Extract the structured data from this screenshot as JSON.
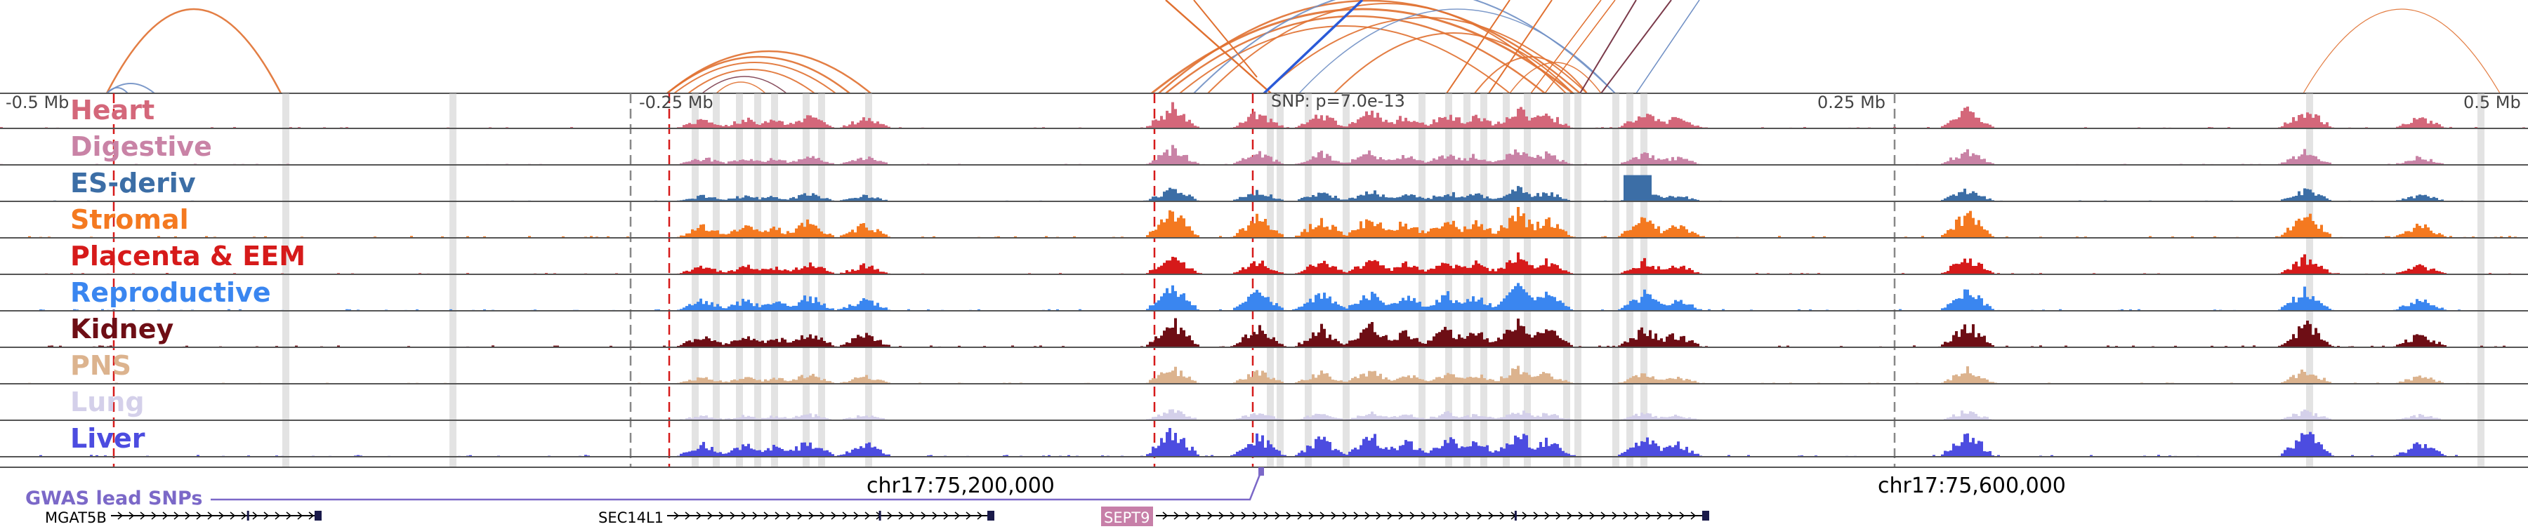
{
  "genome_browser": {
    "scale_labels": [
      "-0.5 Mb",
      "-0.25 Mb",
      "0.25 Mb",
      "0.5 Mb"
    ],
    "snp_label": "SNP: p=7.0e-13",
    "tracks": [
      {
        "label": "Heart",
        "color": "#d4677a"
      },
      {
        "label": "Digestive",
        "color": "#c983a6"
      },
      {
        "label": "ES-deriv",
        "color": "#3c6ea6"
      },
      {
        "label": "Stromal",
        "color": "#f47920"
      },
      {
        "label": "Placenta & EEM",
        "color": "#d61a1a"
      },
      {
        "label": "Reproductive",
        "color": "#3a86f0"
      },
      {
        "label": "Kidney",
        "color": "#6e0e15"
      },
      {
        "label": "PNS",
        "color": "#dcb38e"
      },
      {
        "label": "Lung",
        "color": "#d4d0ea"
      },
      {
        "label": "Liver",
        "color": "#4c4ce0"
      }
    ],
    "gwas_label": "GWAS lead SNPs",
    "gwas_color": "#7b68c8",
    "coordinates": [
      "chr17:75,200,000",
      "chr17:75,600,000"
    ],
    "genes": [
      {
        "name": "MGAT5B",
        "highlight": false
      },
      {
        "name": "SEC14L1",
        "highlight": false
      },
      {
        "name": "SEPT9",
        "highlight": true
      }
    ],
    "highlight_gene_color": "#c77fa8",
    "loop_colors": {
      "primary": "#e07030",
      "secondary": "#6f8fc4",
      "tertiary": "#7a3a4a",
      "strong": "#2a5ad8"
    }
  }
}
